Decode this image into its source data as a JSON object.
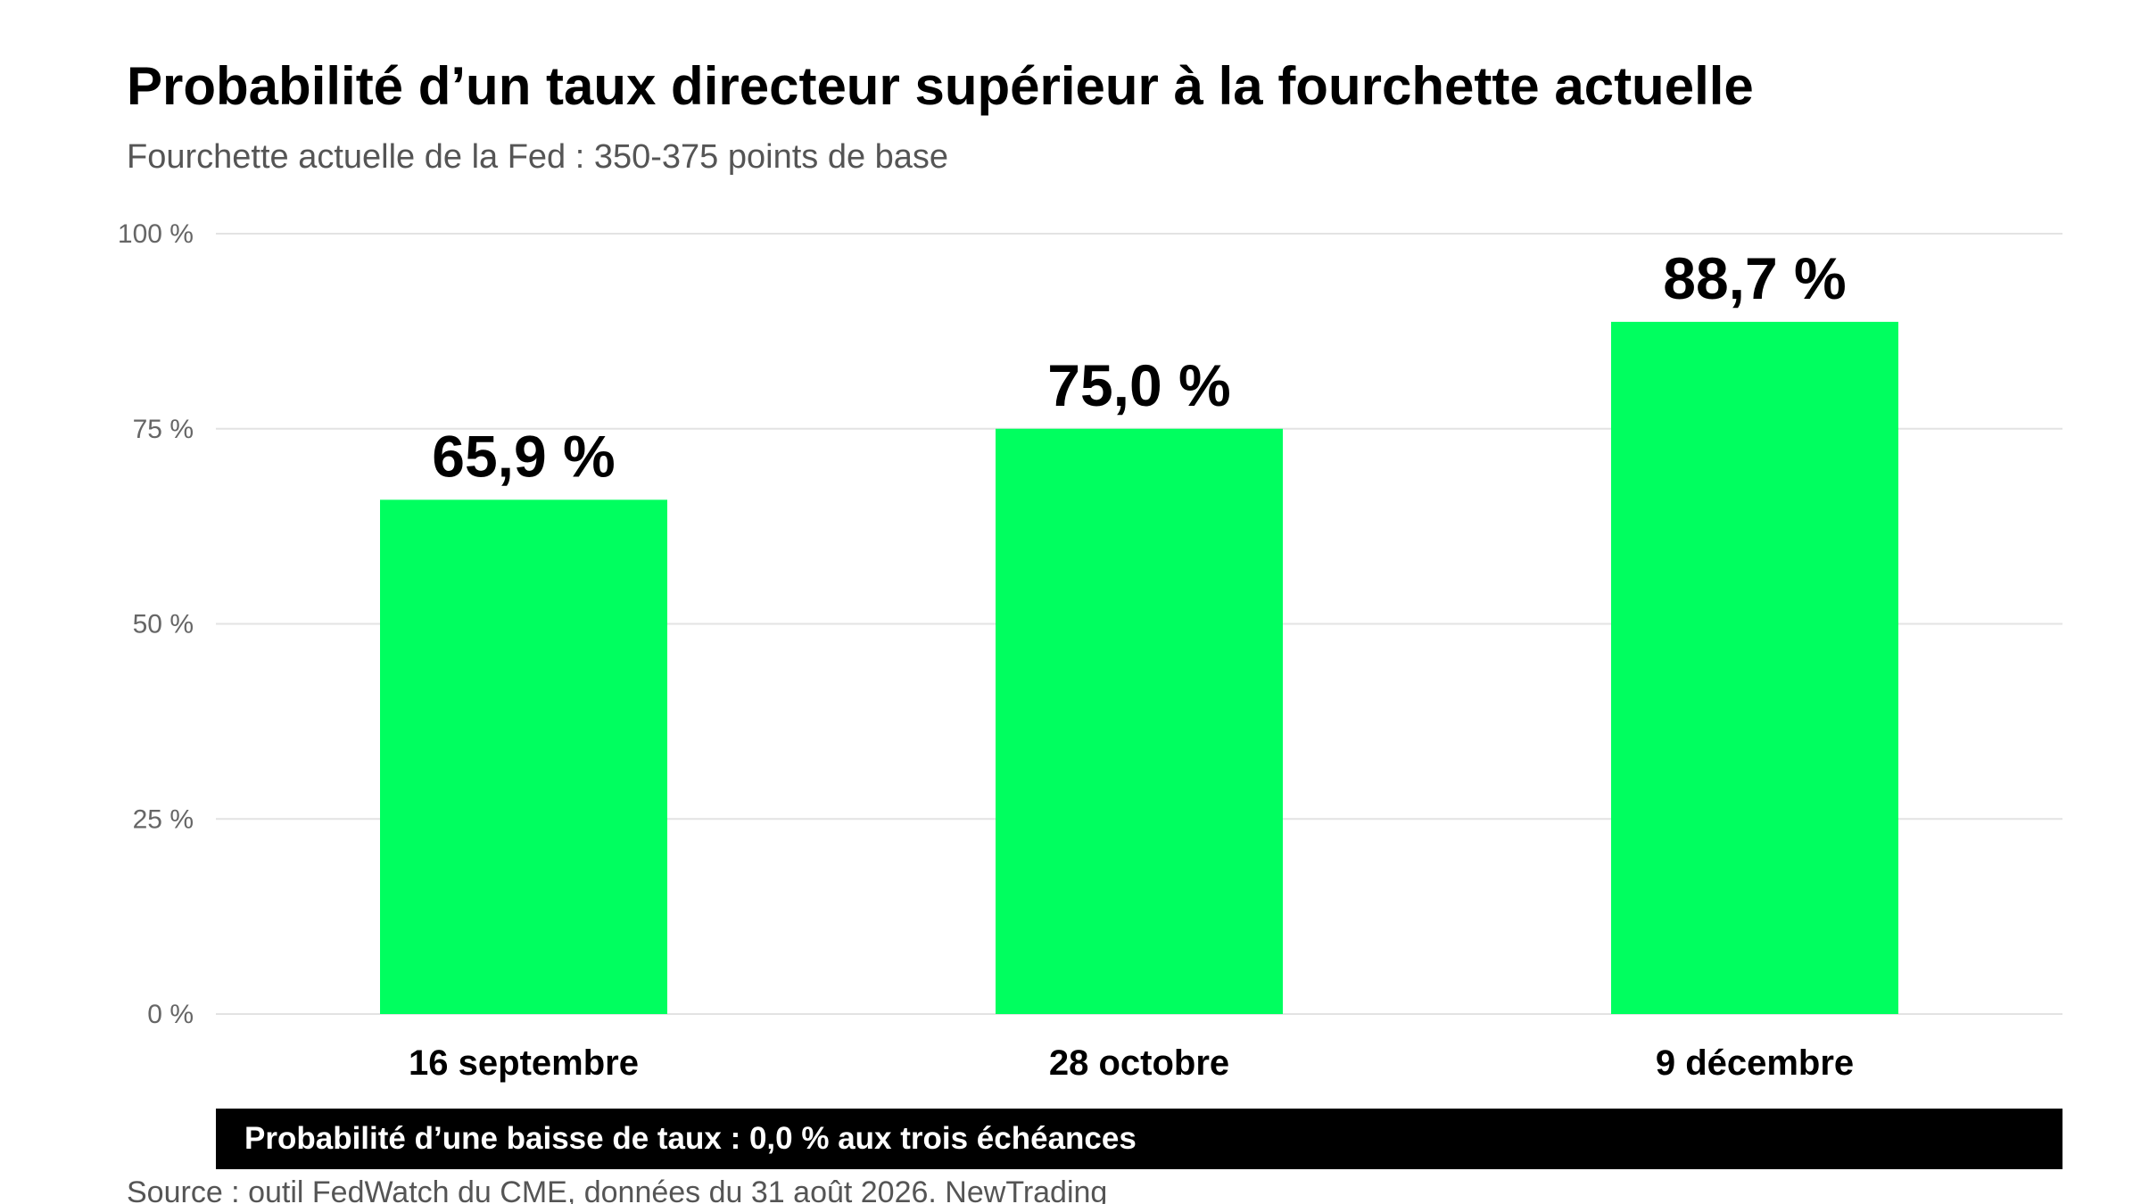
{
  "title": "Probabilité d’un taux directeur supérieur à la fourchette actuelle",
  "subtitle": "Fourchette actuelle de la Fed : 350-375 points de base",
  "banner": "Probabilité d’une baisse de taux : 0,0 % aux trois échéances",
  "source": "Source : outil FedWatch du CME, données du 31 août 2026. NewTrading",
  "colors": {
    "bar": "#00FF5F",
    "grid": "#E3E3E3",
    "banner_bg": "#000000"
  },
  "chart_data": {
    "type": "bar",
    "categories": [
      "16 septembre",
      "28 octobre",
      "9 décembre"
    ],
    "values": [
      65.9,
      75.0,
      88.7
    ],
    "value_labels": [
      "65,9 %",
      "75,0 %",
      "88,7 %"
    ],
    "yticks": [
      0,
      25,
      50,
      75,
      100
    ],
    "ytick_labels": [
      "0 %",
      "25 %",
      "50 %",
      "75 %",
      "100 %"
    ],
    "ylim": [
      0,
      100
    ],
    "xlabel": "",
    "ylabel": "",
    "grid": true,
    "legend": "none"
  }
}
